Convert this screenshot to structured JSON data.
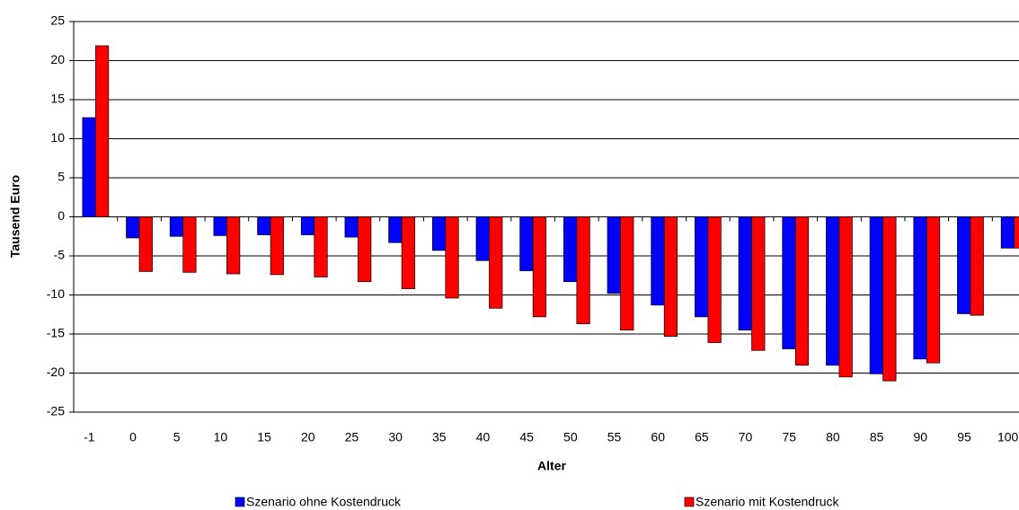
{
  "chart_data": {
    "type": "bar",
    "x_label": "Alter",
    "y_label": "Tausend Euro",
    "categories": [
      "-1",
      "0",
      "5",
      "10",
      "15",
      "20",
      "25",
      "30",
      "35",
      "40",
      "45",
      "50",
      "55",
      "60",
      "65",
      "70",
      "75",
      "80",
      "85",
      "90",
      "95",
      "100"
    ],
    "series": [
      {
        "name": "Szenario ohne Kostendruck",
        "color": "#0000ff",
        "values": [
          12.7,
          -2.7,
          -2.5,
          -2.4,
          -2.3,
          -2.3,
          -2.6,
          -3.3,
          -4.3,
          -5.6,
          -6.9,
          -8.3,
          -9.8,
          -11.3,
          -12.8,
          -14.5,
          -16.9,
          -19.0,
          -20.1,
          -18.2,
          -12.4,
          -4.0
        ]
      },
      {
        "name": "Szenario mit Kostendruck",
        "color": "#ff0000",
        "values": [
          21.9,
          -7.0,
          -7.1,
          -7.3,
          -7.4,
          -7.7,
          -8.3,
          -9.2,
          -10.4,
          -11.7,
          -12.8,
          -13.7,
          -14.5,
          -15.3,
          -16.1,
          -17.1,
          -19.0,
          -20.5,
          -21.0,
          -18.7,
          -12.6,
          -4.0
        ]
      }
    ],
    "ylim": [
      -25,
      25
    ],
    "yticks": [
      -25,
      -20,
      -15,
      -10,
      -5,
      0,
      5,
      10,
      15,
      20,
      25
    ],
    "grid": true,
    "legend": "bottom"
  }
}
